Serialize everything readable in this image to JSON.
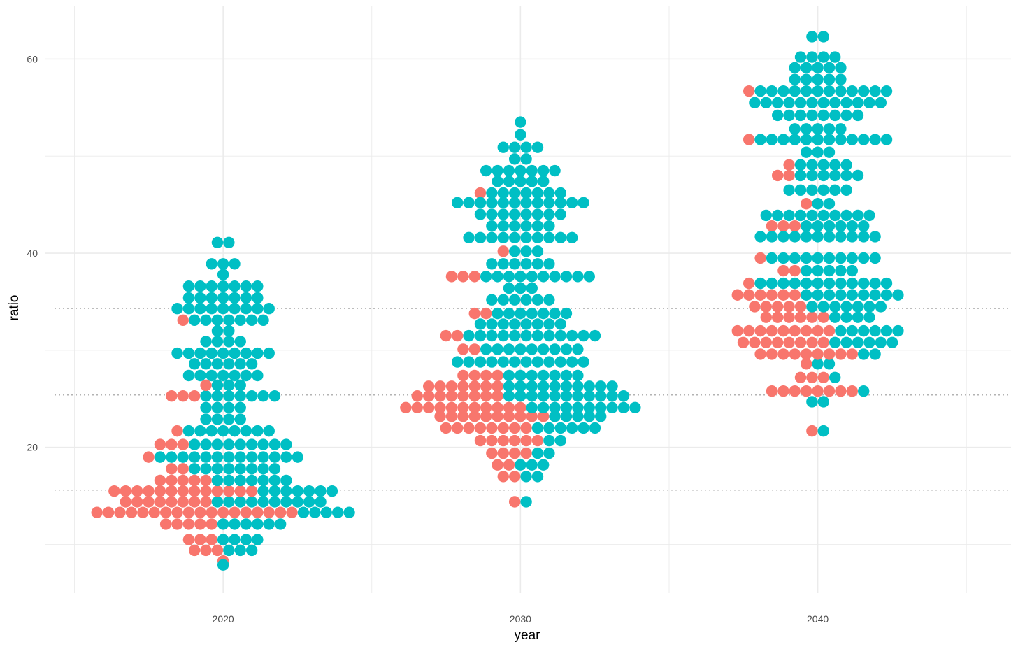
{
  "chart_data": {
    "type": "scatter",
    "subtype": "beeswarm",
    "xlabel": "year",
    "ylabel": "ratio",
    "x_ticks": [
      2020,
      2030,
      2040
    ],
    "y_ticks": [
      20,
      40,
      60
    ],
    "xlim": [
      2014,
      2046.5
    ],
    "ylim": [
      5.0,
      65.5
    ],
    "grid": true,
    "legend": "none",
    "reference_lines": [
      15.6,
      25.4,
      34.3
    ],
    "colors": {
      "red": "#f8766d",
      "teal": "#00bfc4",
      "grid": "#ebebeb",
      "reference": "#b3b3b3"
    },
    "series": [
      {
        "color": "red",
        "groups": [
          {
            "year": 2020,
            "values": [
              8.3,
              9.4,
              9.4,
              9.4,
              10.5,
              10.5,
              10.5,
              12.1,
              12.1,
              12.1,
              12.1,
              12.1,
              13.3,
              13.3,
              13.3,
              13.3,
              13.3,
              13.3,
              13.3,
              13.3,
              13.3,
              13.3,
              13.3,
              13.3,
              13.3,
              13.3,
              13.3,
              13.3,
              13.3,
              13.3,
              14.4,
              14.4,
              14.4,
              14.4,
              14.4,
              14.4,
              14.4,
              14.4,
              15.5,
              15.5,
              15.5,
              15.5,
              15.5,
              15.5,
              15.5,
              15.5,
              15.5,
              15.5,
              15.5,
              15.5,
              15.5,
              16.6,
              16.6,
              16.6,
              16.6,
              16.6,
              17.8,
              17.8,
              19.0,
              20.3,
              20.3,
              20.3,
              21.7,
              25.3,
              25.3,
              25.3,
              26.4,
              33.1
            ]
          },
          {
            "year": 2030,
            "values": [
              14.4,
              17.0,
              17.0,
              18.2,
              18.2,
              19.4,
              19.4,
              19.4,
              19.4,
              20.7,
              20.7,
              20.7,
              20.7,
              20.7,
              20.7,
              22.0,
              22.0,
              22.0,
              22.0,
              22.0,
              22.0,
              22.0,
              22.0,
              23.2,
              23.2,
              23.2,
              23.2,
              23.2,
              23.2,
              23.2,
              23.2,
              23.2,
              23.2,
              24.1,
              24.1,
              24.1,
              24.1,
              24.1,
              24.1,
              24.1,
              24.1,
              24.1,
              24.1,
              24.1,
              25.3,
              25.3,
              25.3,
              25.3,
              25.3,
              25.3,
              25.3,
              25.3,
              26.3,
              26.3,
              26.3,
              26.3,
              26.3,
              26.3,
              26.3,
              27.4,
              27.4,
              27.4,
              27.4,
              30.1,
              30.1,
              31.5,
              31.5,
              33.8,
              33.8,
              37.6,
              37.6,
              37.6,
              40.2,
              46.2
            ]
          },
          {
            "year": 2040,
            "values": [
              21.7,
              25.8,
              25.8,
              25.8,
              25.8,
              25.8,
              25.8,
              25.8,
              25.8,
              27.2,
              27.2,
              27.2,
              28.6,
              29.6,
              29.6,
              29.6,
              29.6,
              29.6,
              29.6,
              29.6,
              29.6,
              29.6,
              30.8,
              30.8,
              30.8,
              30.8,
              30.8,
              30.8,
              30.8,
              30.8,
              32.0,
              32.0,
              32.0,
              32.0,
              32.0,
              32.0,
              32.0,
              32.0,
              32.0,
              33.4,
              33.4,
              33.4,
              33.4,
              33.4,
              33.4,
              34.5,
              34.5,
              34.5,
              34.5,
              34.5,
              35.7,
              35.7,
              35.7,
              35.7,
              35.7,
              35.7,
              36.9,
              38.2,
              38.2,
              39.5,
              42.8,
              42.8,
              42.8,
              45.1,
              48.0,
              48.0,
              49.1,
              51.7,
              56.7
            ]
          }
        ]
      },
      {
        "color": "teal",
        "groups": [
          {
            "year": 2020,
            "values": [
              7.9,
              9.4,
              9.4,
              9.4,
              10.5,
              10.5,
              10.5,
              10.5,
              12.1,
              12.1,
              12.1,
              12.1,
              12.1,
              12.1,
              13.3,
              13.3,
              13.3,
              13.3,
              13.3,
              14.4,
              14.4,
              14.4,
              14.4,
              14.4,
              14.4,
              14.4,
              14.4,
              14.4,
              14.4,
              15.5,
              15.5,
              15.5,
              15.5,
              15.5,
              15.5,
              15.5,
              16.6,
              16.6,
              16.6,
              16.6,
              16.6,
              16.6,
              16.6,
              17.8,
              17.8,
              17.8,
              17.8,
              17.8,
              17.8,
              17.8,
              17.8,
              19.0,
              19.0,
              19.0,
              19.0,
              19.0,
              19.0,
              19.0,
              19.0,
              19.0,
              19.0,
              19.0,
              19.0,
              19.0,
              20.3,
              20.3,
              20.3,
              20.3,
              20.3,
              20.3,
              20.3,
              20.3,
              20.3,
              21.7,
              21.7,
              21.7,
              21.7,
              21.7,
              21.7,
              21.7,
              21.7,
              22.9,
              22.9,
              22.9,
              22.9,
              24.1,
              24.1,
              24.1,
              24.1,
              25.3,
              25.3,
              25.3,
              25.3,
              25.3,
              25.3,
              25.3,
              26.4,
              26.4,
              26.4,
              27.4,
              27.4,
              27.4,
              27.4,
              27.4,
              27.4,
              27.4,
              28.6,
              28.6,
              28.6,
              28.6,
              28.6,
              28.6,
              29.7,
              29.7,
              29.7,
              29.7,
              29.7,
              29.7,
              29.7,
              29.7,
              29.7,
              30.9,
              30.9,
              30.9,
              30.9,
              32.0,
              32.0,
              33.1,
              33.1,
              33.1,
              33.1,
              33.1,
              33.1,
              33.1,
              34.3,
              34.3,
              34.3,
              34.3,
              34.3,
              34.3,
              34.3,
              34.3,
              34.3,
              35.4,
              35.4,
              35.4,
              35.4,
              35.4,
              35.4,
              35.4,
              36.6,
              36.6,
              36.6,
              36.6,
              36.6,
              36.6,
              36.6,
              37.8,
              38.9,
              38.9,
              38.9,
              41.1,
              41.1
            ]
          },
          {
            "year": 2030,
            "values": [
              14.4,
              17.0,
              17.0,
              18.2,
              18.2,
              18.2,
              19.4,
              19.4,
              20.7,
              20.7,
              22.0,
              22.0,
              22.0,
              22.0,
              22.0,
              22.0,
              23.2,
              23.2,
              23.2,
              23.2,
              23.2,
              24.1,
              24.1,
              24.1,
              24.1,
              24.1,
              24.1,
              24.1,
              24.1,
              24.1,
              24.1,
              25.3,
              25.3,
              25.3,
              25.3,
              25.3,
              25.3,
              25.3,
              25.3,
              25.3,
              25.3,
              25.3,
              26.3,
              26.3,
              26.3,
              26.3,
              26.3,
              26.3,
              26.3,
              26.3,
              26.3,
              26.3,
              27.4,
              27.4,
              27.4,
              27.4,
              27.4,
              27.4,
              27.4,
              28.8,
              28.8,
              28.8,
              28.8,
              28.8,
              28.8,
              28.8,
              28.8,
              28.8,
              28.8,
              28.8,
              28.8,
              30.1,
              30.1,
              30.1,
              30.1,
              30.1,
              30.1,
              30.1,
              30.1,
              30.1,
              31.5,
              31.5,
              31.5,
              31.5,
              31.5,
              31.5,
              31.5,
              31.5,
              31.5,
              31.5,
              31.5,
              31.5,
              32.7,
              32.7,
              32.7,
              32.7,
              32.7,
              32.7,
              32.7,
              32.7,
              33.8,
              33.8,
              33.8,
              33.8,
              33.8,
              33.8,
              33.8,
              35.2,
              35.2,
              35.2,
              35.2,
              35.2,
              35.2,
              36.4,
              36.4,
              36.4,
              37.6,
              37.6,
              37.6,
              37.6,
              37.6,
              37.6,
              37.6,
              37.6,
              37.6,
              37.6,
              38.9,
              38.9,
              38.9,
              38.9,
              38.9,
              38.9,
              40.2,
              40.2,
              40.2,
              41.6,
              41.6,
              41.6,
              41.6,
              41.6,
              41.6,
              41.6,
              41.6,
              41.6,
              41.6,
              42.8,
              42.8,
              42.8,
              42.8,
              42.8,
              42.8,
              44.0,
              44.0,
              44.0,
              44.0,
              44.0,
              44.0,
              44.0,
              44.0,
              45.2,
              45.2,
              45.2,
              45.2,
              45.2,
              45.2,
              45.2,
              45.2,
              45.2,
              45.2,
              45.2,
              45.2,
              46.2,
              46.2,
              46.2,
              46.2,
              46.2,
              46.2,
              46.2,
              47.4,
              47.4,
              47.4,
              47.4,
              47.4,
              48.5,
              48.5,
              48.5,
              48.5,
              48.5,
              48.5,
              48.5,
              49.7,
              49.7,
              50.9,
              50.9,
              50.9,
              50.9,
              52.2,
              53.5
            ]
          },
          {
            "year": 2040,
            "values": [
              21.7,
              24.7,
              24.7,
              25.8,
              27.2,
              28.6,
              28.6,
              29.6,
              29.6,
              30.8,
              30.8,
              30.8,
              30.8,
              30.8,
              30.8,
              32.0,
              32.0,
              32.0,
              32.0,
              32.0,
              32.0,
              33.4,
              33.4,
              33.4,
              33.4,
              34.5,
              34.5,
              34.5,
              34.5,
              34.5,
              34.5,
              34.5,
              35.7,
              35.7,
              35.7,
              35.7,
              35.7,
              35.7,
              35.7,
              35.7,
              35.7,
              36.9,
              36.9,
              36.9,
              36.9,
              36.9,
              36.9,
              36.9,
              36.9,
              36.9,
              36.9,
              36.9,
              36.9,
              39.5,
              39.5,
              39.5,
              39.5,
              39.5,
              39.5,
              39.5,
              39.5,
              39.5,
              39.5,
              38.2,
              38.2,
              38.2,
              38.2,
              38.2,
              41.7,
              41.7,
              41.7,
              41.7,
              41.7,
              41.7,
              41.7,
              41.7,
              41.7,
              41.7,
              41.7,
              42.8,
              42.8,
              42.8,
              42.8,
              42.8,
              42.8,
              43.9,
              43.9,
              43.9,
              43.9,
              43.9,
              43.9,
              43.9,
              43.9,
              43.9,
              43.9,
              45.1,
              45.1,
              46.5,
              46.5,
              46.5,
              46.5,
              46.5,
              46.5,
              48.0,
              48.0,
              48.0,
              48.0,
              48.0,
              48.0,
              49.1,
              49.1,
              49.1,
              49.1,
              49.1,
              50.4,
              50.4,
              50.4,
              51.7,
              51.7,
              51.7,
              51.7,
              51.7,
              51.7,
              51.7,
              51.7,
              51.7,
              51.7,
              51.7,
              51.7,
              52.8,
              52.8,
              52.8,
              52.8,
              52.8,
              54.2,
              54.2,
              54.2,
              54.2,
              54.2,
              54.2,
              54.2,
              54.2,
              55.5,
              55.5,
              55.5,
              55.5,
              55.5,
              55.5,
              55.5,
              55.5,
              55.5,
              55.5,
              55.5,
              55.5,
              56.7,
              56.7,
              56.7,
              56.7,
              56.7,
              56.7,
              56.7,
              56.7,
              56.7,
              56.7,
              56.7,
              56.7,
              57.9,
              57.9,
              57.9,
              57.9,
              57.9,
              59.1,
              59.1,
              59.1,
              59.1,
              59.1,
              60.2,
              60.2,
              60.2,
              60.2,
              62.3,
              62.3
            ]
          }
        ]
      }
    ]
  }
}
